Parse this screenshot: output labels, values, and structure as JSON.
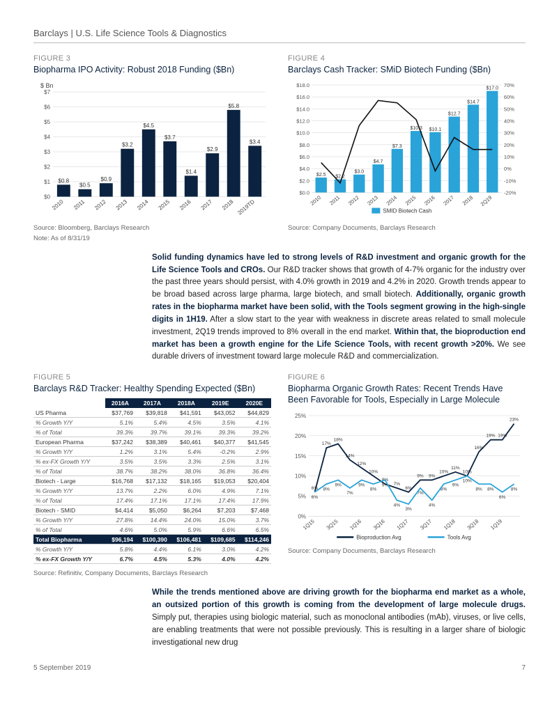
{
  "header": "Barclays | U.S. Life Science Tools & Diagnostics",
  "fig3": {
    "label": "FIGURE 3",
    "title": "Biopharma IPO Activity: Robust 2018 Funding ($Bn)",
    "type": "bar",
    "y_axis_label": "$ Bn",
    "categories": [
      "2010",
      "2011",
      "2012",
      "2013",
      "2014",
      "2015",
      "2016",
      "2017",
      "2018",
      "2019TD"
    ],
    "values": [
      0.8,
      0.5,
      0.9,
      3.2,
      4.5,
      3.7,
      1.4,
      2.9,
      5.8,
      3.4
    ],
    "value_labels": [
      "$0.8",
      "$0.5",
      "$0.9",
      "$3.2",
      "$4.5",
      "$3.7",
      "$1.4",
      "$2.9",
      "$5.8",
      "$3.4"
    ],
    "ylim": [
      0,
      7
    ],
    "ytick_step": 1,
    "bar_color": "#0b2340",
    "label_fontsize": 9,
    "grid_color": "#d0d0d0",
    "source": "Source: Bloomberg, Barclays Research",
    "note": "Note: As of 8/31/19"
  },
  "fig4": {
    "label": "FIGURE 4",
    "title": "Barclays Cash Tracker: SMiD Biotech Funding ($Bn)",
    "type": "bar_line_dual_axis",
    "categories": [
      "2010",
      "2011",
      "2012",
      "2013",
      "2014",
      "2015",
      "2016",
      "2017",
      "2018",
      "2Q19"
    ],
    "bar_values": [
      2.5,
      2.2,
      3.0,
      4.7,
      7.3,
      10.3,
      10.1,
      12.7,
      14.7,
      17.0
    ],
    "bar_labels": [
      "$2.5",
      "$2.2",
      "$3.0",
      "$4.7",
      "$7.3",
      "$10.3",
      "$10.1",
      "$12.7",
      "$14.7",
      "$17.0"
    ],
    "line_values": [
      5,
      -12,
      36,
      57,
      55,
      41,
      -2,
      26,
      16,
      16
    ],
    "y1_lim": [
      0,
      18
    ],
    "y1_tick_step": 2,
    "y1_prefix": "$",
    "y1_suffix": ".0",
    "y2_lim": [
      -20,
      70
    ],
    "y2_tick_step": 10,
    "y2_suffix": "%",
    "bar_color": "#2aa3d9",
    "line_color": "#111111",
    "grid_color": "#d0d0d0",
    "legend": "SMID Biotech Cash",
    "source": "Source: Company Documents, Barclays Research"
  },
  "para1_parts": [
    {
      "bold": true,
      "text": "Solid funding dynamics have led to strong levels of R&D investment and organic growth for the Life Science Tools and CROs."
    },
    {
      "bold": false,
      "text": " Our R&D tracker shows that growth of 4-7% organic for the industry over the past three years should persist, with 4.0% growth in 2019 and 4.2% in 2020. Growth trends appear to be broad based across large pharma, large biotech, and small biotech. "
    },
    {
      "bold": true,
      "text": "Additionally, organic growth rates in the biopharma market have been solid, with the Tools segment growing in the high-single digits in 1H19."
    },
    {
      "bold": false,
      "text": " After a slow start to the year with weakness in discrete areas related to small molecule investment, 2Q19 trends improved to 8% overall in the end market. "
    },
    {
      "bold": true,
      "text": "Within that, the bioproduction end market has been a growth engine for the Life Science Tools, with recent growth >20%."
    },
    {
      "bold": false,
      "text": " We see durable drivers of investment toward large molecule R&D and commercialization."
    }
  ],
  "fig5": {
    "label": "FIGURE 5",
    "title": "Barclays R&D Tracker: Healthy Spending Expected ($Bn)",
    "columns": [
      "",
      "2016A",
      "2017A",
      "2018A",
      "2019E",
      "2020E"
    ],
    "rows": [
      {
        "cls": "",
        "cells": [
          "US Pharma",
          "$37,769",
          "$39,818",
          "$41,591",
          "$43,052",
          "$44,829"
        ]
      },
      {
        "cls": "ital",
        "cells": [
          "   % Growth Y/Y",
          "5.1%",
          "5.4%",
          "4.5%",
          "3.5%",
          "4.1%"
        ]
      },
      {
        "cls": "ital",
        "cells": [
          "   % of Total",
          "39.3%",
          "39.7%",
          "39.1%",
          "39.3%",
          "39.2%"
        ]
      },
      {
        "cls": "",
        "cells": [
          "European Pharma",
          "$37,242",
          "$38,389",
          "$40,461",
          "$40,377",
          "$41,545"
        ]
      },
      {
        "cls": "ital",
        "cells": [
          "   % Growth Y/Y",
          "1.2%",
          "3.1%",
          "5.4%",
          "-0.2%",
          "2.9%"
        ]
      },
      {
        "cls": "ital",
        "cells": [
          "   % ex-FX Growth Y/Y",
          "3.5%",
          "3.5%",
          "3.3%",
          "2.5%",
          "3.1%"
        ]
      },
      {
        "cls": "ital",
        "cells": [
          "   % of Total",
          "38.7%",
          "38.2%",
          "38.0%",
          "36.8%",
          "36.4%"
        ]
      },
      {
        "cls": "",
        "cells": [
          "Biotech - Large",
          "$16,768",
          "$17,132",
          "$18,165",
          "$19,053",
          "$20,404"
        ]
      },
      {
        "cls": "ital",
        "cells": [
          "   % Growth Y/Y",
          "13.7%",
          "2.2%",
          "6.0%",
          "4.9%",
          "7.1%"
        ]
      },
      {
        "cls": "ital",
        "cells": [
          "   % of Total",
          "17.4%",
          "17.1%",
          "17.1%",
          "17.4%",
          "17.9%"
        ]
      },
      {
        "cls": "",
        "cells": [
          "Biotech - SMID",
          "$4,414",
          "$5,050",
          "$6,264",
          "$7,203",
          "$7,468"
        ]
      },
      {
        "cls": "ital",
        "cells": [
          "   % Growth Y/Y",
          "27.8%",
          "14.4%",
          "24.0%",
          "15.0%",
          "3.7%"
        ]
      },
      {
        "cls": "ital",
        "cells": [
          "   % of Total",
          "4.6%",
          "5.0%",
          "5.9%",
          "6.6%",
          "6.5%"
        ]
      },
      {
        "cls": "total-row",
        "cells": [
          "Total Biopharma",
          "$96,194",
          "$100,390",
          "$106,481",
          "$109,685",
          "$114,246"
        ]
      },
      {
        "cls": "ital",
        "cells": [
          "   % Growth Y/Y",
          "5.8%",
          "4.4%",
          "6.1%",
          "3.0%",
          "4.2%"
        ]
      },
      {
        "cls": "ital-bold",
        "cells": [
          "   % ex-FX Growth Y/Y",
          "6.7%",
          "4.5%",
          "5.3%",
          "4.0%",
          "4.2%"
        ]
      }
    ],
    "source": "Source: Refinitiv, Company Documents, Barclays Research"
  },
  "fig6": {
    "label": "FIGURE 6",
    "title": "Biopharma Organic Growth Rates: Recent Trends Have Been Favorable for Tools, Especially in Large Molecule",
    "type": "line",
    "categories": [
      "1Q15",
      "3Q15",
      "1Q16",
      "3Q16",
      "1Q17",
      "3Q17",
      "1Q18",
      "3Q18",
      "1Q19"
    ],
    "series": [
      {
        "name": "Bioproduction Avg",
        "color": "#0b2340",
        "values": [
          6,
          17,
          18,
          14,
          12,
          10,
          8,
          7,
          6,
          9,
          9,
          10,
          11,
          10,
          16,
          19,
          19,
          23
        ],
        "labels": [
          "6%",
          "17%",
          "18%",
          "14%",
          "12%",
          "10%",
          "8%",
          "7%",
          "6%",
          "9%",
          "9%",
          "10%",
          "11%",
          "10%",
          "16%",
          "19%",
          "19%",
          "23%"
        ]
      },
      {
        "name": "Tools Avg",
        "color": "#2aa3d9",
        "values": [
          6,
          8,
          9,
          7,
          9,
          8,
          9,
          4,
          3,
          7,
          4,
          8,
          9,
          10,
          8,
          8,
          6,
          8
        ],
        "labels": [
          "6%",
          "8%",
          "9%",
          "7%",
          "9%",
          "8%",
          "9%",
          "4%",
          "3%",
          "7%",
          "4%",
          "8%",
          "9%",
          "10%",
          "8%",
          "8%",
          "6%",
          "8%"
        ]
      }
    ],
    "ylim": [
      0,
      25
    ],
    "ytick_step": 5,
    "grid_color": "#d0d0d0",
    "source": "Source: Company Documents, Barclays Research"
  },
  "para2_parts": [
    {
      "bold": true,
      "text": "While the trends mentioned above are driving growth for the biopharma end market as a whole, an outsized portion of this growth is coming from the development of large molecule drugs."
    },
    {
      "bold": false,
      "text": " Simply put, therapies using biologic material, such as monoclonal antibodies (mAb), viruses, or live cells, are enabling treatments that were not possible previously. This is resulting in a larger share of biologic investigational new drug"
    }
  ],
  "footer": {
    "date": "5 September 2019",
    "page": "7"
  }
}
